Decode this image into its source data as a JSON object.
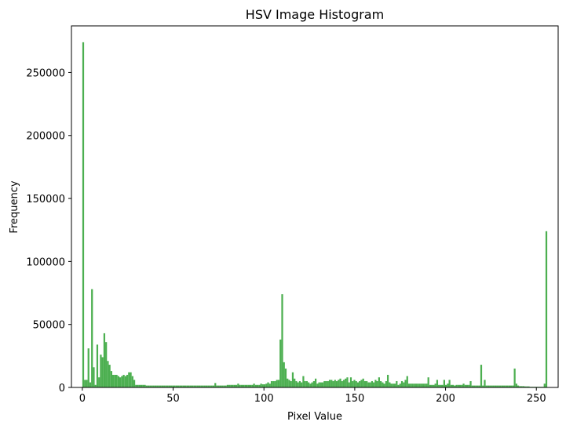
{
  "chart_data": {
    "type": "bar",
    "title": "HSV Image Histogram",
    "xlabel": "Pixel Value",
    "ylabel": "Frequency",
    "xlim": [
      -6,
      262
    ],
    "ylim": [
      0,
      287000
    ],
    "xticks": [
      0,
      50,
      100,
      150,
      200,
      250
    ],
    "yticks": [
      0,
      50000,
      100000,
      150000,
      200000,
      250000
    ],
    "bar_color": "#4CAF50",
    "grid": false,
    "legend": "none",
    "series": [
      {
        "values": [
          274000,
          6000,
          6000,
          31000,
          4000,
          78000,
          16000,
          2000,
          34000,
          8000,
          26000,
          24000,
          43000,
          36000,
          21000,
          18000,
          13000,
          10000,
          10000,
          10000,
          9000,
          8000,
          9000,
          10000,
          9000,
          10000,
          12000,
          12000,
          9000,
          6000,
          2000,
          2000,
          2000,
          2000,
          2000,
          2000,
          1500,
          1500,
          1500,
          1500,
          1500,
          1500,
          1500,
          1500,
          1500,
          1500,
          1500,
          1500,
          1500,
          1500,
          1500,
          1500,
          1500,
          1500,
          1500,
          1500,
          1500,
          1500,
          1500,
          1500,
          1500,
          1500,
          1500,
          1500,
          1500,
          1500,
          1500,
          1500,
          1500,
          1500,
          1500,
          1500,
          1500,
          1500,
          1500,
          3500,
          1500,
          1500,
          1500,
          1500,
          1500,
          1500,
          2000,
          2000,
          2000,
          2000,
          2000,
          2000,
          3000,
          2000,
          2000,
          2000,
          2000,
          2000,
          2000,
          2000,
          2000,
          3000,
          2000,
          2000,
          2000,
          3000,
          2500,
          2500,
          3000,
          4000,
          3000,
          5000,
          5000,
          5000,
          6000,
          6000,
          38000,
          74000,
          20000,
          15000,
          7000,
          6000,
          5000,
          12000,
          7000,
          5000,
          4000,
          5000,
          4000,
          9000,
          5000,
          5000,
          4000,
          3000,
          4000,
          5000,
          7000,
          3000,
          4000,
          4000,
          4000,
          5000,
          5000,
          5000,
          6000,
          6000,
          5000,
          6000,
          5000,
          6000,
          7000,
          5000,
          6000,
          7000,
          8000,
          4000,
          8000,
          5000,
          6000,
          5000,
          4000,
          5000,
          6000,
          7000,
          5000,
          5000,
          4000,
          4000,
          5000,
          4000,
          6000,
          5000,
          8000,
          5000,
          4000,
          3000,
          5000,
          10000,
          4000,
          3000,
          3000,
          3000,
          5000,
          2000,
          3000,
          5000,
          4000,
          6000,
          9000,
          3000,
          3000,
          3000,
          3000,
          3000,
          3000,
          3000,
          3000,
          3000,
          3000,
          3000,
          8000,
          2000,
          2000,
          2000,
          3000,
          6000,
          2000,
          2000,
          2000,
          6000,
          2000,
          3000,
          6000,
          2000,
          2000,
          1500,
          2000,
          2000,
          2000,
          2000,
          3000,
          2000,
          2000,
          2000,
          5000,
          1500,
          1500,
          1500,
          1500,
          1500,
          18000,
          1500,
          6000,
          1500,
          1500,
          1500,
          1500,
          1500,
          1500,
          1500,
          1500,
          1500,
          1500,
          1500,
          1500,
          1500,
          1500,
          1500,
          1500,
          15000,
          3000,
          1500,
          1000,
          1000,
          1000,
          800,
          800,
          800,
          500,
          500,
          500,
          500,
          500,
          500,
          500,
          500,
          3000,
          124000
        ]
      }
    ]
  }
}
